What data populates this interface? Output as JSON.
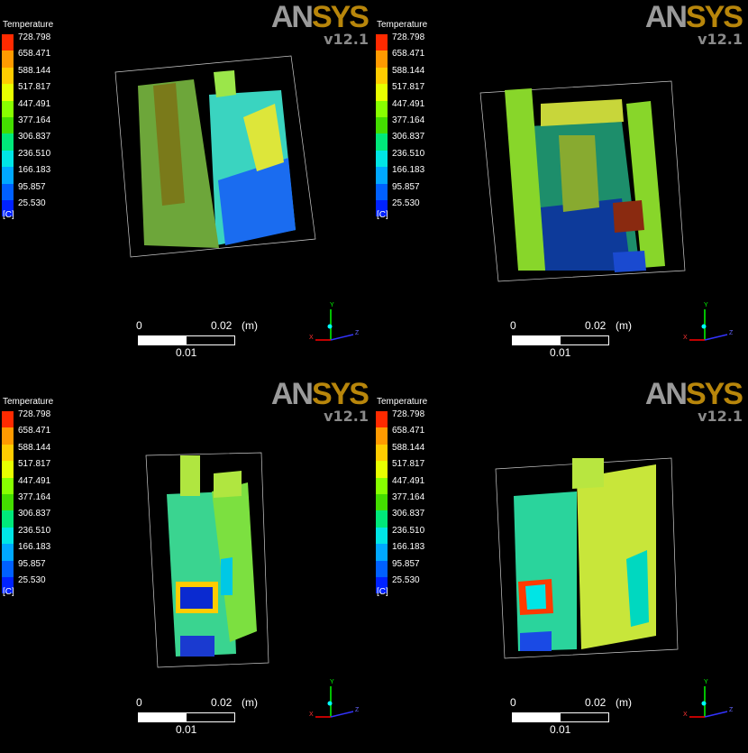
{
  "logo": {
    "an": "AN",
    "sys": "SYS"
  },
  "version": "v12.1",
  "legend": {
    "title": "Temperature",
    "values": [
      "728.798",
      "658.471",
      "588.144",
      "517.817",
      "447.491",
      "377.164",
      "306.837",
      "236.510",
      "166.183",
      "95.857",
      "25.530"
    ],
    "unit": "[C]",
    "colors": [
      "#ff2a00",
      "#ff9a00",
      "#ffcc00",
      "#e8ff00",
      "#88ff00",
      "#44dd00",
      "#00e87a",
      "#00e5e5",
      "#00a8ff",
      "#0060ff",
      "#0022ff"
    ]
  },
  "scale": {
    "zero": "0",
    "max": "0.02",
    "unit": "(m)",
    "mid": "0.01"
  },
  "axes": {
    "y": "Y",
    "x": "X",
    "z": "Z"
  },
  "panels": [
    {
      "view": "view-1"
    },
    {
      "view": "view-2"
    },
    {
      "view": "view-3"
    },
    {
      "view": "view-4"
    }
  ]
}
